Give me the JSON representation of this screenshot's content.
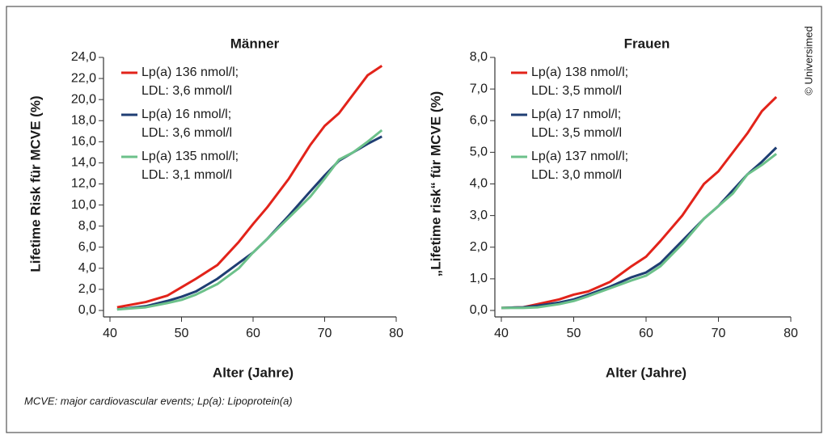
{
  "chart_data": [
    {
      "type": "line",
      "title": "Männer",
      "x_label": "Alter (Jahre)",
      "y_label": "Lifetime Risk für MCVE (%)",
      "x": [
        41,
        45,
        48,
        50,
        52,
        55,
        58,
        60,
        62,
        65,
        68,
        70,
        72,
        74,
        76,
        78
      ],
      "xlim": [
        40,
        80
      ],
      "xticks": [
        40,
        50,
        60,
        70,
        80
      ],
      "ylim": [
        0,
        24
      ],
      "yticks": [
        {
          "value": 0,
          "label": "0,0"
        },
        {
          "value": 2,
          "label": "2,0"
        },
        {
          "value": 4,
          "label": "4,0"
        },
        {
          "value": 6,
          "label": "6,0"
        },
        {
          "value": 8,
          "label": "8,0"
        },
        {
          "value": 10,
          "label": "10,0"
        },
        {
          "value": 12,
          "label": "12,0"
        },
        {
          "value": 14,
          "label": "14,0"
        },
        {
          "value": 16,
          "label": "16,0"
        },
        {
          "value": 18,
          "label": "18,0"
        },
        {
          "value": 20,
          "label": "20,0"
        },
        {
          "value": 22,
          "label": "22,0"
        },
        {
          "value": 24,
          "label": "24,0"
        }
      ],
      "series": [
        {
          "name": "Lp(a) 136 nmol/l;\nLDL: 3,6 mmol/l",
          "color": "#e2231a",
          "values": [
            0.3,
            0.8,
            1.4,
            2.2,
            3.0,
            4.3,
            6.5,
            8.2,
            9.8,
            12.5,
            15.7,
            17.5,
            18.7,
            20.5,
            22.3,
            23.2
          ]
        },
        {
          "name": "Lp(a) 16 nmol/l;\nLDL: 3,6 mmol/l",
          "color": "#1f3e73",
          "values": [
            0.1,
            0.4,
            0.9,
            1.3,
            1.8,
            3.0,
            4.5,
            5.5,
            6.8,
            9.0,
            11.3,
            12.8,
            14.2,
            15.0,
            15.8,
            16.5
          ]
        },
        {
          "name": "Lp(a) 135 nmol/l;\nLDL: 3,1 mmol/l",
          "color": "#6cc18a",
          "values": [
            0.1,
            0.3,
            0.7,
            1.0,
            1.5,
            2.5,
            4.0,
            5.5,
            6.8,
            8.8,
            10.8,
            12.5,
            14.3,
            15.0,
            16.0,
            17.1
          ]
        }
      ]
    },
    {
      "type": "line",
      "title": "Frauen",
      "x_label": "Alter (Jahre)",
      "y_label": "„Lifetime risk“ für MCVE (%)",
      "x": [
        40,
        43,
        45,
        48,
        50,
        52,
        55,
        58,
        60,
        62,
        65,
        68,
        70,
        72,
        74,
        76,
        78
      ],
      "xlim": [
        40,
        80
      ],
      "xticks": [
        40,
        50,
        60,
        70,
        80
      ],
      "ylim": [
        0,
        8
      ],
      "yticks": [
        {
          "value": 0,
          "label": "0,0"
        },
        {
          "value": 1,
          "label": "1,0"
        },
        {
          "value": 2,
          "label": "2,0"
        },
        {
          "value": 3,
          "label": "3,0"
        },
        {
          "value": 4,
          "label": "4,0"
        },
        {
          "value": 5,
          "label": "5,0"
        },
        {
          "value": 6,
          "label": "6,0"
        },
        {
          "value": 7,
          "label": "7,0"
        },
        {
          "value": 8,
          "label": "8,0"
        }
      ],
      "series": [
        {
          "name": "Lp(a) 138 nmol/l;\nLDL: 3,5 mmol/l",
          "color": "#e2231a",
          "values": [
            0.08,
            0.1,
            0.2,
            0.35,
            0.5,
            0.6,
            0.9,
            1.4,
            1.7,
            2.2,
            3.0,
            4.0,
            4.4,
            5.0,
            5.6,
            6.3,
            6.75
          ]
        },
        {
          "name": "Lp(a) 17 nmol/l;\nLDL: 3,5 mmol/l",
          "color": "#1f3e73",
          "values": [
            0.08,
            0.1,
            0.15,
            0.25,
            0.35,
            0.5,
            0.75,
            1.05,
            1.2,
            1.5,
            2.2,
            2.9,
            3.3,
            3.8,
            4.3,
            4.7,
            5.15
          ]
        },
        {
          "name": "Lp(a) 137 nmol/l;\nLDL: 3,0 mmol/l",
          "color": "#6cc18a",
          "values": [
            0.08,
            0.08,
            0.1,
            0.2,
            0.3,
            0.45,
            0.7,
            0.95,
            1.1,
            1.4,
            2.1,
            2.9,
            3.3,
            3.7,
            4.3,
            4.6,
            4.95
          ]
        }
      ]
    }
  ],
  "footnote": "MCVE: major cardiovascular events; Lp(a): Lipoprotein(a)",
  "copyright": "© Universimed"
}
